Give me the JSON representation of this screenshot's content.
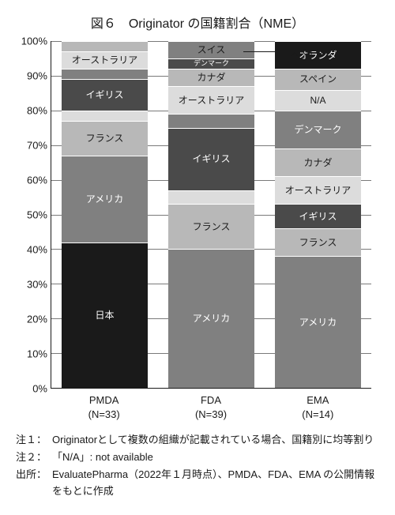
{
  "title": "図６　Originator の国籍割合（NME）",
  "title_fontsize": 16,
  "chart": {
    "type": "stacked-bar-100",
    "ylim": [
      0,
      100
    ],
    "ytick_step": 10,
    "ytick_suffix": "%",
    "grid_color": "#7a7a7a",
    "axis_color": "#1a1a1a",
    "background_color": "#ffffff",
    "label_fontsize": 12,
    "categories": [
      {
        "name": "PMDA",
        "n": "(N=33)"
      },
      {
        "name": "FDA",
        "n": "(N=39)"
      },
      {
        "name": "EMA",
        "n": "(N=14)"
      }
    ],
    "colors": {
      "black": "#1a1a1a",
      "dark": "#4a4a4a",
      "mid": "#808080",
      "light": "#b8b8b8",
      "xlight": "#dcdcdc",
      "white": "#ffffff"
    },
    "bars": [
      {
        "segments": [
          {
            "label": "日本",
            "v": 42,
            "fill": "black",
            "text": "white"
          },
          {
            "label": "アメリカ",
            "v": 25,
            "fill": "mid",
            "text": "white"
          },
          {
            "label": "フランス",
            "v": 10,
            "fill": "light",
            "text": "dark"
          },
          {
            "label": "",
            "v": 3,
            "fill": "xlight",
            "text": "dark"
          },
          {
            "label": "イギリス",
            "v": 9,
            "fill": "dark",
            "text": "white"
          },
          {
            "label": "",
            "v": 3,
            "fill": "mid",
            "text": "dark"
          },
          {
            "label": "オーストラリア",
            "v": 5,
            "fill": "xlight",
            "text": "dark"
          },
          {
            "label": "",
            "v": 3,
            "fill": "light",
            "text": "dark"
          }
        ]
      },
      {
        "segments": [
          {
            "label": "アメリカ",
            "v": 40,
            "fill": "mid",
            "text": "white"
          },
          {
            "label": "フランス",
            "v": 13,
            "fill": "light",
            "text": "dark"
          },
          {
            "label": "",
            "v": 4,
            "fill": "xlight",
            "text": "dark"
          },
          {
            "label": "イギリス",
            "v": 18,
            "fill": "dark",
            "text": "white"
          },
          {
            "label": "",
            "v": 4,
            "fill": "mid",
            "text": "dark"
          },
          {
            "label": "オーストラリア",
            "v": 8,
            "fill": "xlight",
            "text": "dark"
          },
          {
            "label": "カナダ",
            "v": 5,
            "fill": "light",
            "text": "dark"
          },
          {
            "label": "デンマーク",
            "v": 3,
            "fill": "dark",
            "text": "white",
            "small": true
          },
          {
            "label": "スイス",
            "v": 5,
            "fill": "mid",
            "text": "dark"
          }
        ],
        "callout": {
          "label": "スペイン",
          "from_top_pct": 3
        }
      },
      {
        "segments": [
          {
            "label": "アメリカ",
            "v": 38,
            "fill": "mid",
            "text": "white"
          },
          {
            "label": "フランス",
            "v": 8,
            "fill": "light",
            "text": "dark"
          },
          {
            "label": "イギリス",
            "v": 7,
            "fill": "dark",
            "text": "white"
          },
          {
            "label": "オーストラリア",
            "v": 8,
            "fill": "xlight",
            "text": "dark"
          },
          {
            "label": "カナダ",
            "v": 8,
            "fill": "light",
            "text": "dark"
          },
          {
            "label": "デンマーク",
            "v": 11,
            "fill": "mid",
            "text": "white"
          },
          {
            "label": "N/A",
            "v": 6,
            "fill": "xlight",
            "text": "dark"
          },
          {
            "label": "スペイン",
            "v": 6,
            "fill": "light",
            "text": "dark"
          },
          {
            "label": "オランダ",
            "v": 8,
            "fill": "black",
            "text": "white"
          }
        ]
      }
    ]
  },
  "notes": [
    {
      "lbl": "注１：",
      "txt": "Originatorとして複数の組織が記載されている場合、国籍別に均等割り"
    },
    {
      "lbl": "注２：",
      "txt": "「N/A」: not available"
    },
    {
      "lbl": "出所：",
      "txt": "EvaluatePharma（2022年１月時点）、PMDA、FDA、EMA の公開情報をもとに作成"
    }
  ]
}
